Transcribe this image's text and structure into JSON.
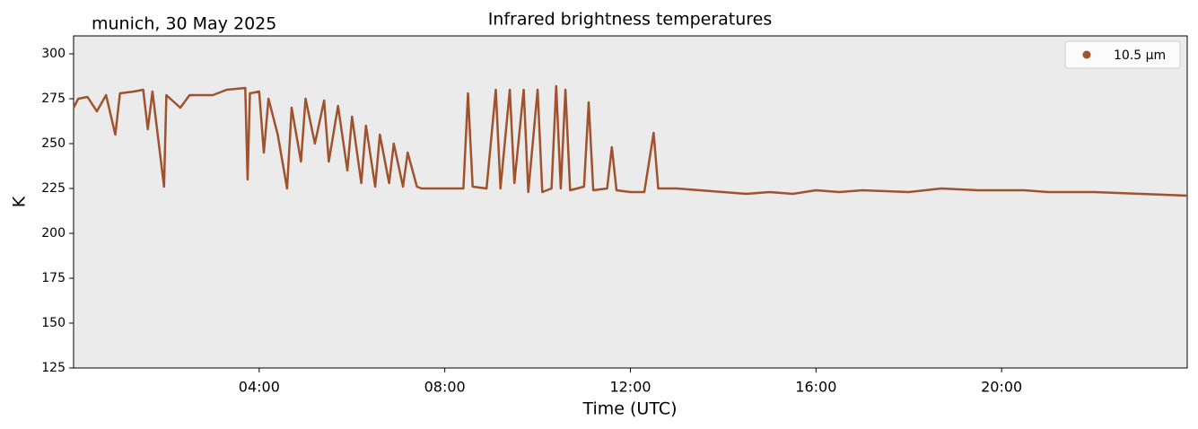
{
  "chart_data": {
    "type": "line",
    "title": "Infrared brightness temperatures",
    "subtitle": "munich, 30 May 2025",
    "x_label": "Time (UTC)",
    "y_label": "K",
    "xlim": [
      0,
      24
    ],
    "xticks": [
      {
        "value": 4,
        "label": "04:00"
      },
      {
        "value": 8,
        "label": "08:00"
      },
      {
        "value": 12,
        "label": "12:00"
      },
      {
        "value": 16,
        "label": "16:00"
      },
      {
        "value": 20,
        "label": "20:00"
      }
    ],
    "ylim": [
      125,
      310
    ],
    "yticks": [
      125,
      150,
      175,
      200,
      225,
      250,
      275,
      300
    ],
    "legend": "upper right",
    "x": [
      0.0,
      0.1,
      0.3,
      0.5,
      0.7,
      0.9,
      1.0,
      1.3,
      1.5,
      1.6,
      1.7,
      1.95,
      2.0,
      2.3,
      2.5,
      3.0,
      3.3,
      3.7,
      3.75,
      3.8,
      4.0,
      4.1,
      4.2,
      4.4,
      4.6,
      4.7,
      4.9,
      5.0,
      5.2,
      5.4,
      5.5,
      5.7,
      5.9,
      6.0,
      6.2,
      6.3,
      6.5,
      6.6,
      6.8,
      6.9,
      7.1,
      7.2,
      7.4,
      7.5,
      8.0,
      8.4,
      8.5,
      8.6,
      8.9,
      9.1,
      9.2,
      9.4,
      9.5,
      9.7,
      9.8,
      10.0,
      10.1,
      10.3,
      10.4,
      10.5,
      10.6,
      10.7,
      11.0,
      11.1,
      11.2,
      11.5,
      11.6,
      11.7,
      12.0,
      12.3,
      12.5,
      12.6,
      13.0,
      13.5,
      14.0,
      14.5,
      15.0,
      15.5,
      16.0,
      16.5,
      17.0,
      18.0,
      18.7,
      19.5,
      20.5,
      21.0,
      22.0,
      23.0,
      24.0
    ],
    "series": [
      {
        "name": "10.5 µm",
        "color": "#a0522d",
        "values": [
          270,
          275,
          276,
          268,
          277,
          255,
          278,
          279,
          280,
          258,
          279,
          226,
          277,
          270,
          277,
          277,
          280,
          281,
          230,
          278,
          279,
          245,
          275,
          255,
          225,
          270,
          240,
          275,
          250,
          274,
          240,
          271,
          235,
          265,
          228,
          260,
          226,
          255,
          228,
          250,
          226,
          245,
          226,
          225,
          225,
          225,
          278,
          226,
          225,
          280,
          225,
          280,
          228,
          280,
          223,
          280,
          223,
          225,
          282,
          225,
          280,
          224,
          226,
          273,
          224,
          225,
          248,
          224,
          223,
          223,
          256,
          225,
          225,
          224,
          223,
          222,
          223,
          222,
          224,
          223,
          224,
          223,
          225,
          224,
          224,
          223,
          223,
          222,
          221
        ]
      }
    ]
  }
}
